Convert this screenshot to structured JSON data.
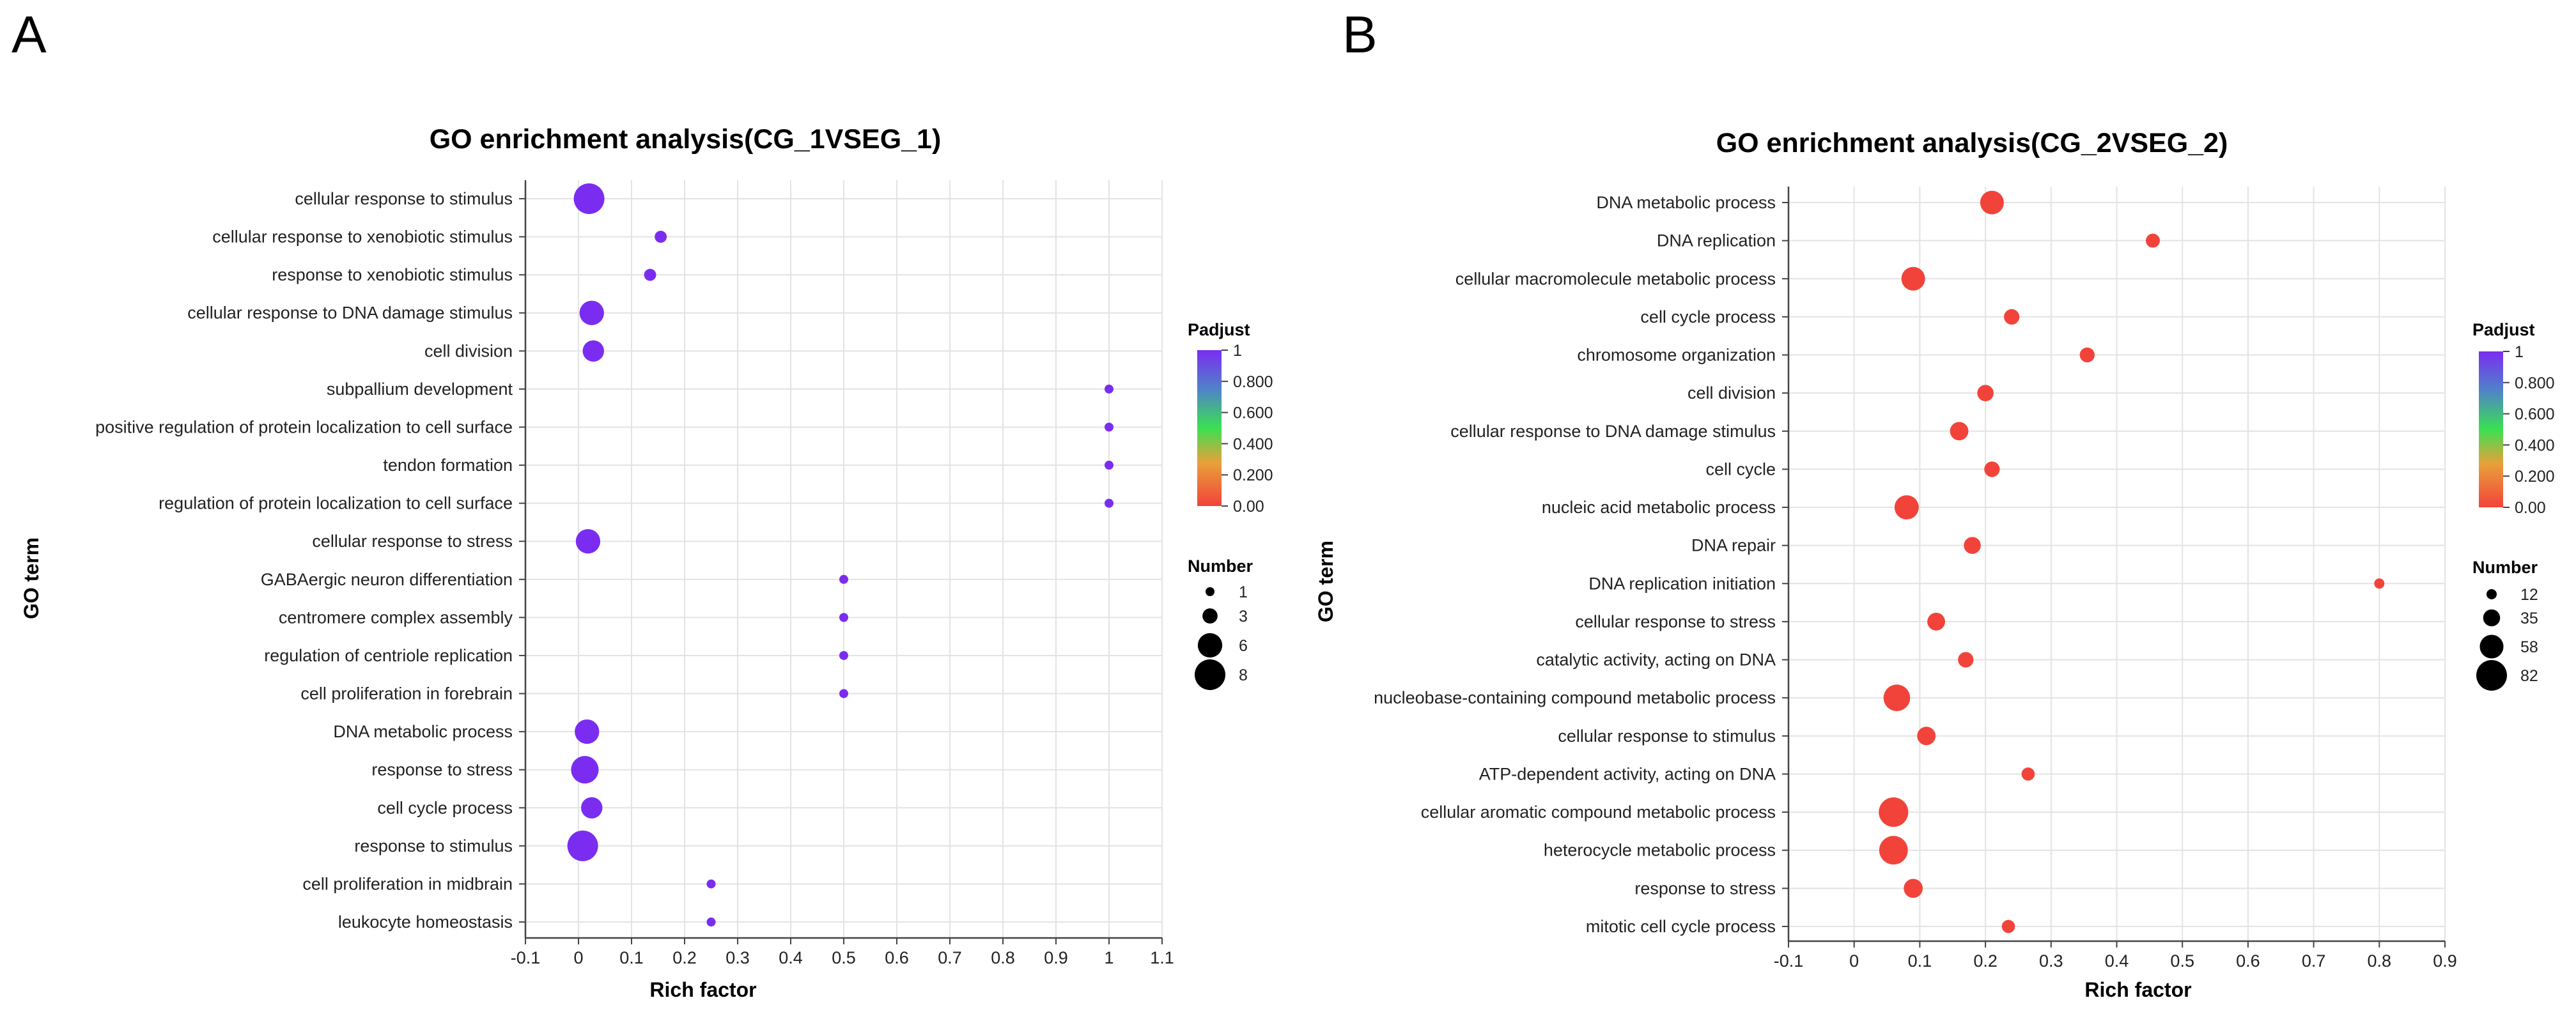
{
  "chart_data": [
    {
      "panel": "A",
      "type": "scatter",
      "title": "GO enrichment analysis(CG_1VSEG_1)",
      "xlabel": "Rich factor",
      "ylabel": "GO term",
      "xlim": [
        -0.1,
        1.1
      ],
      "xticks": [
        "-0.1",
        "0",
        "0.1",
        "0.2",
        "0.3",
        "0.4",
        "0.5",
        "0.6",
        "0.7",
        "0.8",
        "0.9",
        "1",
        "1.1"
      ],
      "grid": true,
      "color_legend": {
        "title": "Padjust",
        "ticks": [
          "1",
          "0.800",
          "0.600",
          "0.400",
          "0.200",
          "0.00"
        ]
      },
      "size_legend": {
        "title": "Number",
        "values": [
          1,
          3,
          6,
          8
        ]
      },
      "terms": [
        "cellular response to stimulus",
        "cellular response to xenobiotic stimulus",
        "response to xenobiotic stimulus",
        "cellular response to DNA damage stimulus",
        "cell division",
        "subpallium development",
        "positive regulation of protein localization to cell surface",
        "tendon formation",
        "regulation of protein localization to cell surface",
        "cellular response to stress",
        "GABAergic neuron differentiation",
        "centromere complex assembly",
        "regulation of centriole replication",
        "cell proliferation in forebrain",
        "DNA metabolic process",
        "response to stress",
        "cell cycle process",
        "response to stimulus",
        "cell proliferation in midbrain",
        "leukocyte homeostasis"
      ],
      "rich_factor": [
        0.02,
        0.155,
        0.135,
        0.025,
        0.028,
        1.0,
        1.0,
        1.0,
        1.0,
        0.018,
        0.5,
        0.5,
        0.5,
        0.5,
        0.016,
        0.012,
        0.025,
        0.008,
        0.25,
        0.25
      ],
      "number": [
        8,
        2,
        2,
        6,
        5,
        1,
        1,
        1,
        1,
        6,
        1,
        1,
        1,
        1,
        6,
        7,
        5,
        8,
        1,
        1
      ],
      "padjust": [
        1,
        1,
        1,
        1,
        1,
        1,
        1,
        1,
        1,
        1,
        1,
        1,
        1,
        1,
        1,
        1,
        1,
        1,
        1,
        1
      ]
    },
    {
      "panel": "B",
      "type": "scatter",
      "title": "GO enrichment analysis(CG_2VSEG_2)",
      "xlabel": "Rich factor",
      "ylabel": "GO term",
      "xlim": [
        -0.1,
        0.9
      ],
      "xticks": [
        "-0.1",
        "0",
        "0.1",
        "0.2",
        "0.3",
        "0.4",
        "0.5",
        "0.6",
        "0.7",
        "0.8",
        "0.9"
      ],
      "grid": true,
      "color_legend": {
        "title": "Padjust",
        "ticks": [
          "1",
          "0.800",
          "0.600",
          "0.400",
          "0.200",
          "0.00"
        ]
      },
      "size_legend": {
        "title": "Number",
        "values": [
          12,
          35,
          58,
          82
        ]
      },
      "terms": [
        "DNA metabolic process",
        "DNA replication",
        "cellular macromolecule metabolic process",
        "cell cycle process",
        "chromosome organization",
        "cell division",
        "cellular response to DNA damage stimulus",
        "cell cycle",
        "nucleic acid metabolic process",
        "DNA repair",
        "DNA replication initiation",
        "cellular response to stress",
        "catalytic activity, acting on DNA",
        "nucleobase-containing compound metabolic process",
        "cellular response to stimulus",
        "ATP-dependent activity, acting on DNA",
        "cellular aromatic compound metabolic process",
        "heterocycle metabolic process",
        "response to stress",
        "mitotic cell cycle process"
      ],
      "rich_factor": [
        0.21,
        0.455,
        0.09,
        0.24,
        0.355,
        0.2,
        0.16,
        0.21,
        0.08,
        0.18,
        0.8,
        0.125,
        0.17,
        0.065,
        0.11,
        0.265,
        0.06,
        0.06,
        0.09,
        0.235
      ],
      "number": [
        58,
        25,
        58,
        30,
        28,
        33,
        40,
        30,
        60,
        35,
        12,
        38,
        30,
        68,
        40,
        22,
        78,
        75,
        42,
        22
      ],
      "padjust": [
        0,
        0,
        0,
        0,
        0,
        0,
        0,
        0,
        0,
        0,
        0,
        0,
        0,
        0,
        0,
        0,
        0,
        0,
        0,
        0
      ]
    }
  ]
}
